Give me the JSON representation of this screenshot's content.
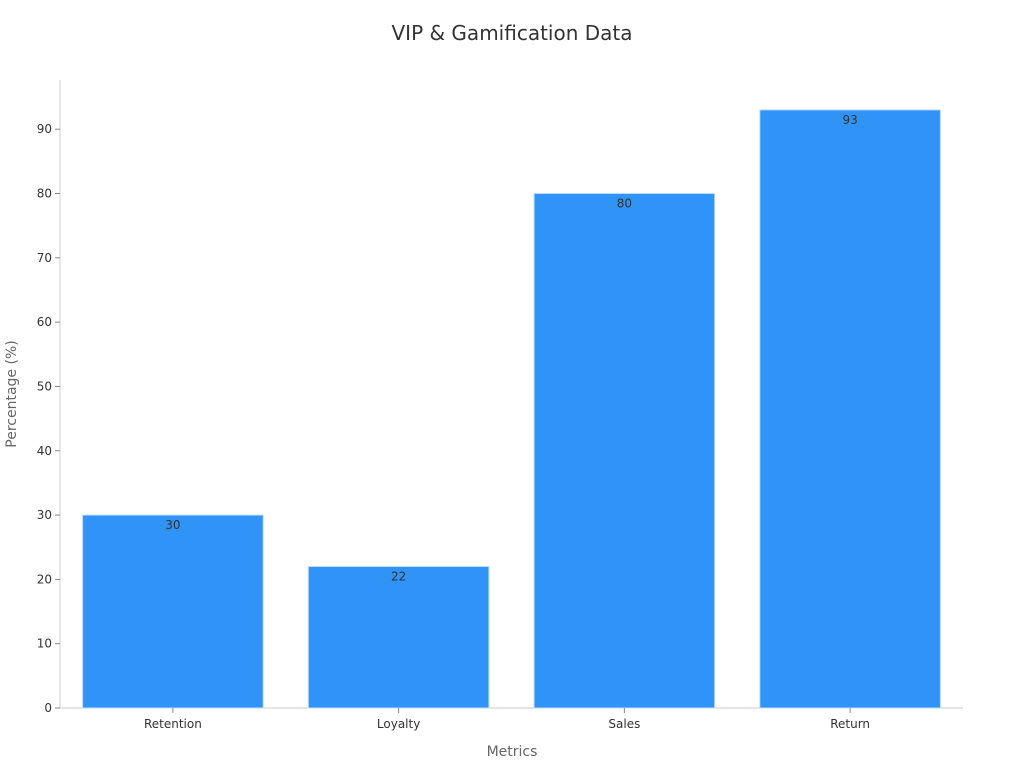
{
  "colors": {
    "bar": "#2f93f8",
    "bar_edge": "#bcdcfb",
    "axis": "#cccccc",
    "text": "#333333",
    "axis_title": "#666666"
  },
  "chart_data": {
    "type": "bar",
    "title": "VIP & Gamification Data",
    "xlabel": "Metrics",
    "ylabel": "Percentage (%)",
    "categories": [
      "Retention",
      "Loyalty",
      "Sales",
      "Return"
    ],
    "values": [
      30,
      22,
      80,
      93
    ],
    "data_labels": [
      "30",
      "22",
      "80",
      "93"
    ],
    "ylim": [
      0,
      97.65
    ],
    "yticks": [
      0,
      10,
      20,
      30,
      40,
      50,
      60,
      70,
      80,
      90
    ],
    "ytick_labels": [
      "0",
      "10",
      "20",
      "30",
      "40",
      "50",
      "60",
      "70",
      "80",
      "90"
    ],
    "grid": false,
    "legend": "none"
  }
}
